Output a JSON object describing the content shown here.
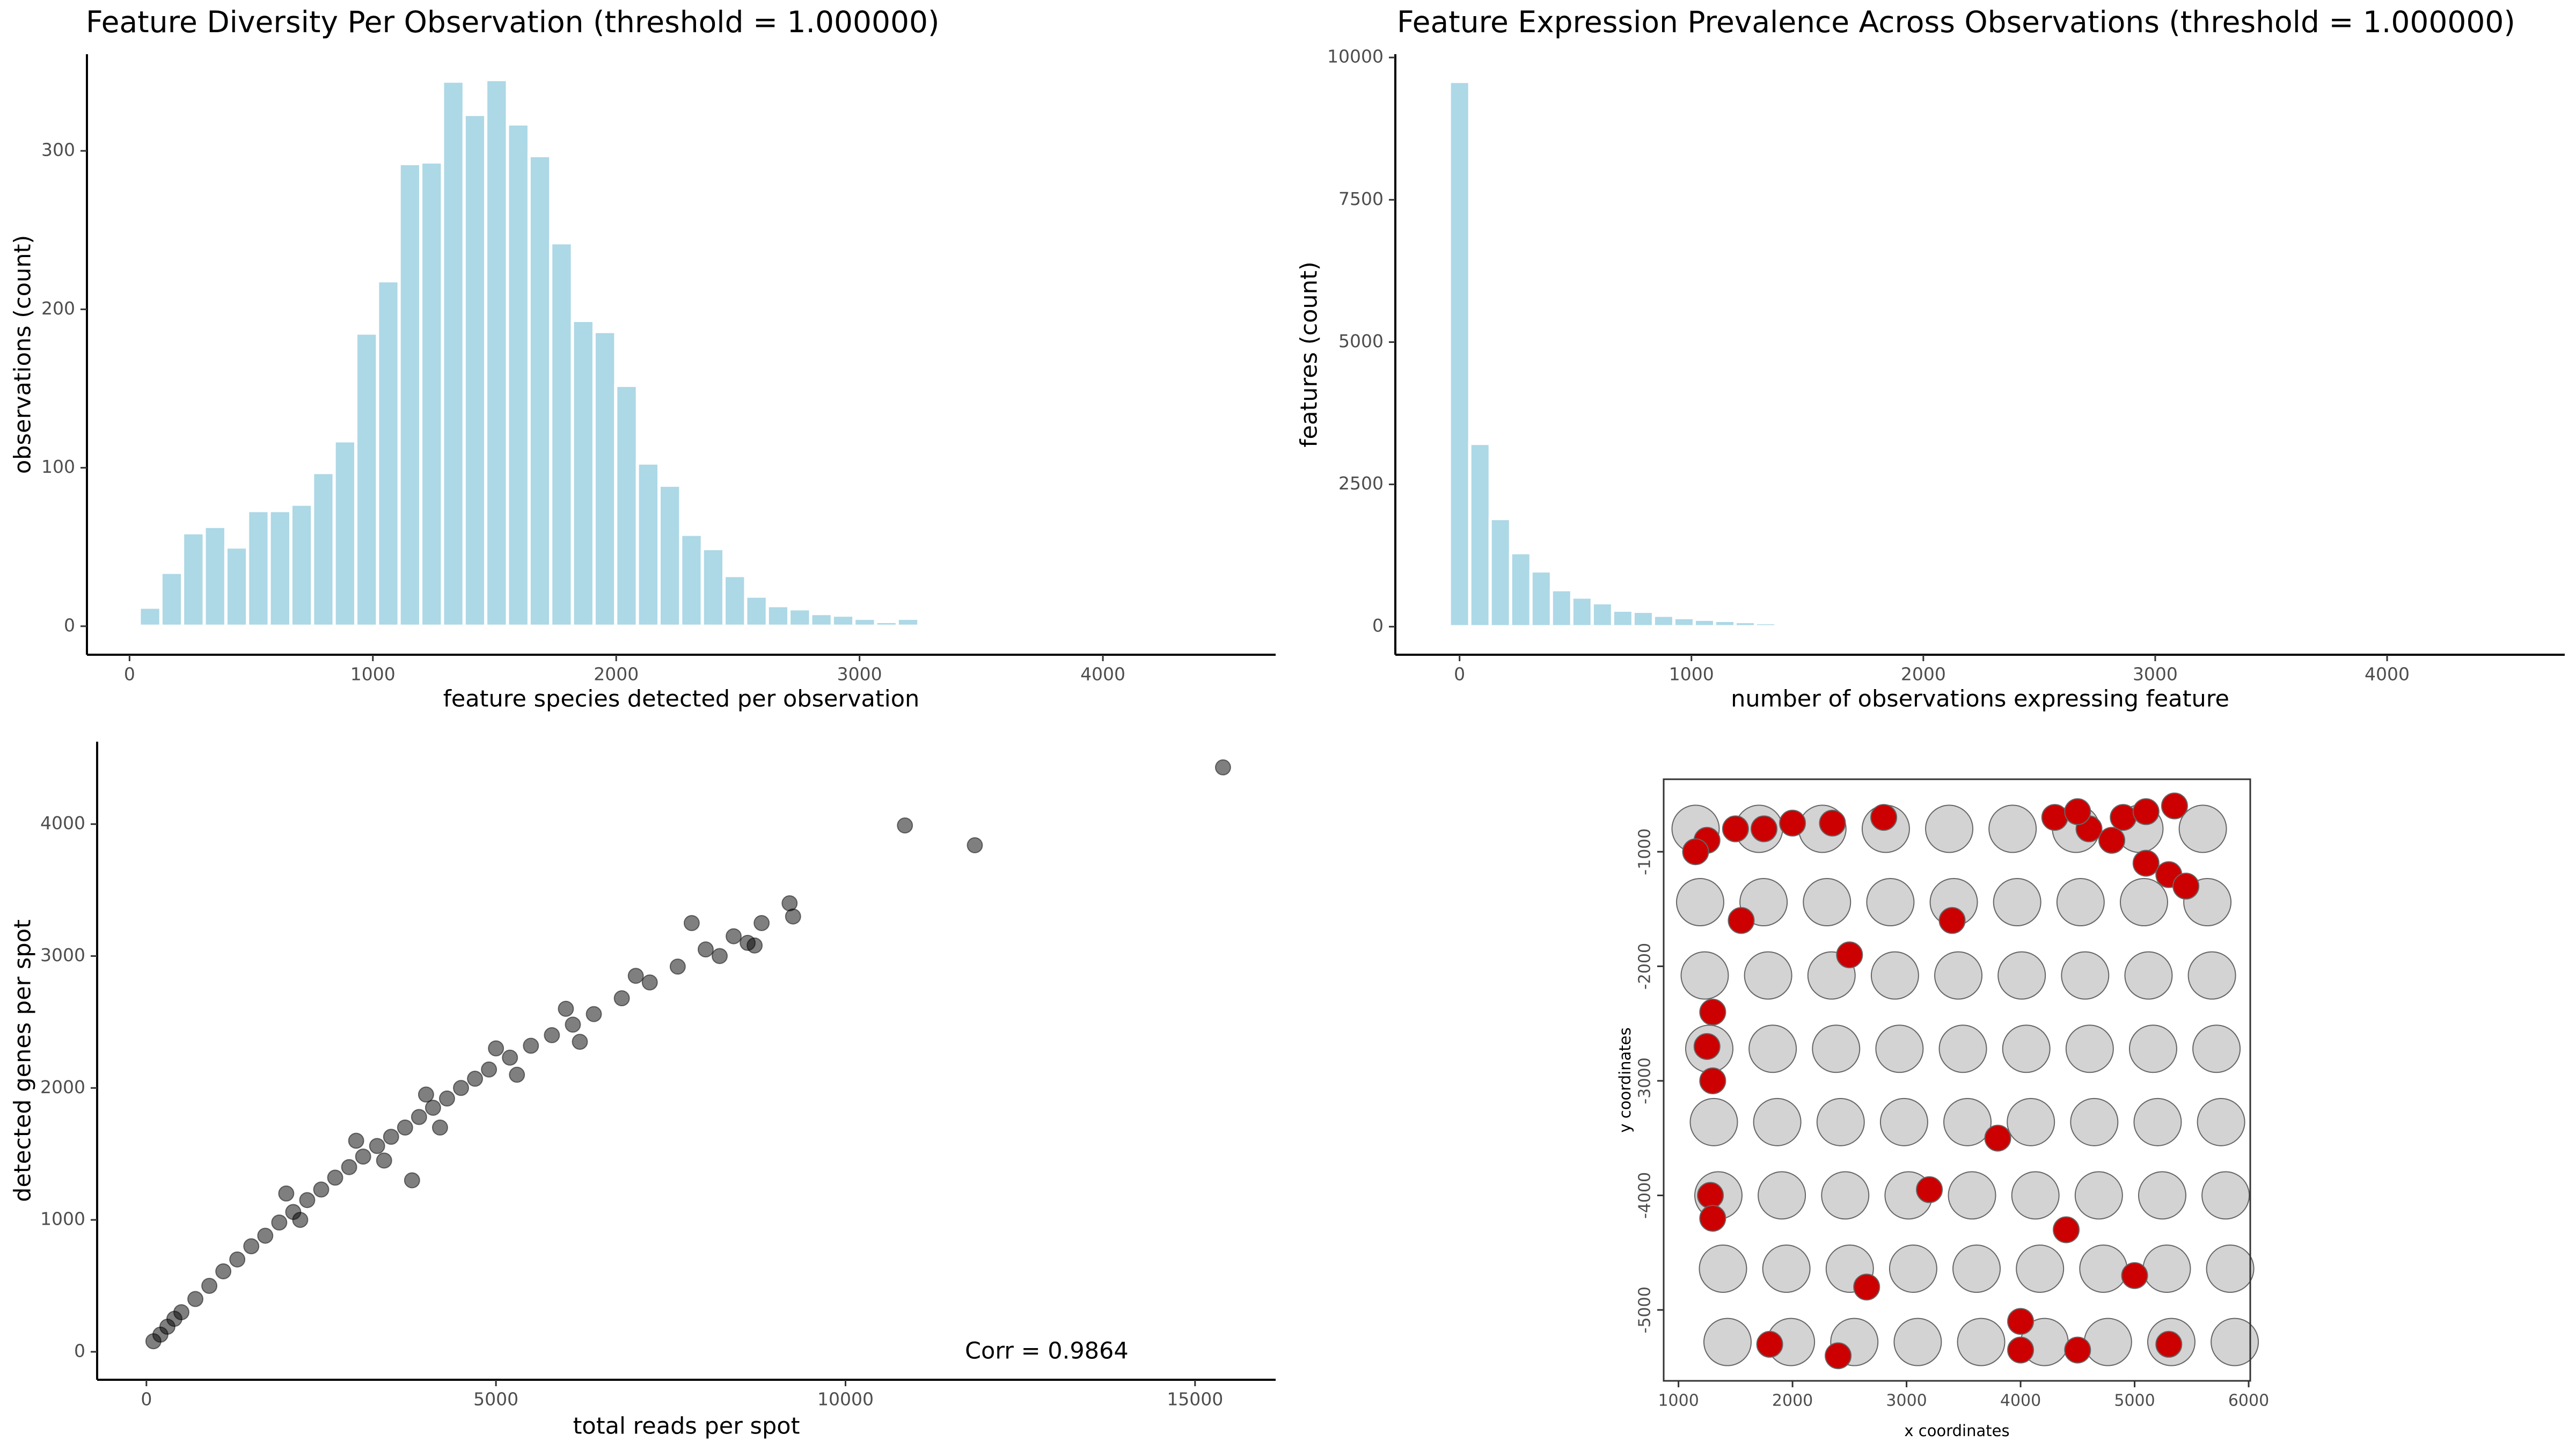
{
  "chart_data": [
    {
      "type": "histogram",
      "title": "Feature Diversity Per Observation (threshold = 1.000000)",
      "xlabel": "feature species detected per observation",
      "ylabel": "observations (count)",
      "color": "#add8e6",
      "bins": [
        40,
        129,
        218,
        307,
        396,
        485,
        574,
        663,
        752,
        841,
        930,
        1019,
        1108,
        1197,
        1286,
        1375,
        1464,
        1553,
        1642,
        1731,
        1820,
        1909,
        1998,
        2087,
        2176,
        2265,
        2354,
        2443,
        2532,
        2621,
        2710,
        2799,
        2888,
        2977,
        3066,
        3155,
        3244,
        3333
      ],
      "values": [
        12,
        34,
        59,
        63,
        50,
        73,
        73,
        77,
        97,
        117,
        185,
        218,
        292,
        293,
        344,
        323,
        345,
        317,
        297,
        242,
        193,
        186,
        152,
        103,
        89,
        58,
        49,
        32,
        19,
        13,
        11,
        8,
        7,
        5,
        3,
        5,
        2
      ],
      "xlim": [
        -175,
        4710
      ],
      "xticks": [
        0,
        1000,
        2000,
        3000,
        4000
      ],
      "ylim": [
        -18,
        361
      ],
      "yticks": [
        0,
        100,
        200,
        300
      ]
    },
    {
      "type": "histogram",
      "title": "Feature Expression Prevalence Across Observations (threshold = 1.000000)",
      "xlabel": "number of observations expressing feature",
      "ylabel": "features (count)",
      "color": "#add8e6",
      "bins": [
        -44,
        44,
        132,
        220,
        308,
        396,
        484,
        572,
        660,
        748,
        836,
        924,
        1012,
        1100,
        1188,
        1276,
        1364,
        1452,
        1540,
        1628,
        1716,
        1804,
        1892,
        1980,
        2068,
        2156
      ],
      "values": [
        9580,
        3220,
        1900,
        1300,
        980,
        650,
        520,
        420,
        290,
        270,
        200,
        160,
        130,
        110,
        90,
        70,
        55,
        40,
        30,
        22,
        16,
        12,
        9,
        6,
        4
      ],
      "xlim": [
        -277,
        4766
      ],
      "xticks": [
        0,
        1000,
        2000,
        3000,
        4000
      ],
      "ylim": [
        -493,
        10058
      ],
      "yticks": [
        0,
        2500,
        5000,
        7500,
        10000
      ]
    },
    {
      "type": "scatter",
      "xlabel": "total reads per spot",
      "ylabel": "detected genes per spot",
      "annotation": "Corr = 0.9864",
      "color": "#000000",
      "alpha": 0.5,
      "x": [
        100,
        200,
        300,
        400,
        500,
        700,
        900,
        1100,
        1300,
        1500,
        1700,
        1900,
        2100,
        2300,
        2500,
        2700,
        2900,
        3100,
        3300,
        3500,
        3700,
        3900,
        4100,
        4300,
        4500,
        4700,
        4900,
        5200,
        5500,
        5800,
        6100,
        6400,
        6800,
        7200,
        7600,
        8000,
        8400,
        8800,
        9200,
        9250,
        8600,
        8200,
        2000,
        2200,
        3000,
        3400,
        4000,
        4200,
        5000,
        5300,
        6000,
        6200,
        7000,
        7800,
        8700,
        3800,
        10850,
        11850,
        15400
      ],
      "values": [
        80,
        130,
        190,
        250,
        300,
        400,
        500,
        610,
        700,
        800,
        880,
        980,
        1060,
        1150,
        1230,
        1320,
        1400,
        1480,
        1560,
        1630,
        1700,
        1780,
        1850,
        1920,
        2000,
        2070,
        2140,
        2230,
        2320,
        2400,
        2480,
        2560,
        2680,
        2800,
        2920,
        3050,
        3150,
        3250,
        3400,
        3300,
        3100,
        3000,
        1200,
        1000,
        1600,
        1450,
        1950,
        1700,
        2300,
        2100,
        2600,
        2350,
        2850,
        3250,
        3080,
        1300,
        3990,
        3840,
        4430
      ],
      "xlim": [
        -705,
        16153
      ],
      "xticks": [
        0,
        5000,
        10000,
        15000
      ],
      "ylim": [
        -212,
        4625
      ],
      "yticks": [
        0,
        1000,
        2000,
        3000,
        4000
      ]
    },
    {
      "type": "spatial",
      "xlabel": "x coordinates",
      "ylabel": "y coordinates",
      "series": [
        {
          "color": "#d3d3d3",
          "x": [
            1150,
            1706,
            2262,
            2818,
            3374,
            3930,
            4486,
            5042,
            5598,
            1190,
            1746,
            2302,
            2858,
            3414,
            3970,
            4526,
            5082,
            5638,
            1230,
            1786,
            2342,
            2898,
            3454,
            4010,
            4566,
            5122,
            5678,
            1270,
            1826,
            2382,
            2938,
            3494,
            4050,
            4606,
            5162,
            5718,
            1310,
            1866,
            2422,
            2978,
            3534,
            4090,
            4646,
            5202,
            5758,
            1350,
            1906,
            2462,
            3018,
            3574,
            4130,
            4686,
            5242,
            5798,
            1390,
            1946,
            2502,
            3058,
            3614,
            4170,
            4726,
            5282,
            5838,
            1430,
            1986,
            2542,
            3098,
            3654,
            4210,
            4766,
            5322,
            5878
          ],
          "values": [
            -800,
            -800,
            -800,
            -800,
            -800,
            -800,
            -800,
            -800,
            -800,
            -1440,
            -1440,
            -1440,
            -1440,
            -1440,
            -1440,
            -1440,
            -1440,
            -1440,
            -2080,
            -2080,
            -2080,
            -2080,
            -2080,
            -2080,
            -2080,
            -2080,
            -2080,
            -2720,
            -2720,
            -2720,
            -2720,
            -2720,
            -2720,
            -2720,
            -2720,
            -2720,
            -3360,
            -3360,
            -3360,
            -3360,
            -3360,
            -3360,
            -3360,
            -3360,
            -3360,
            -4000,
            -4000,
            -4000,
            -4000,
            -4000,
            -4000,
            -4000,
            -4000,
            -4000,
            -4640,
            -4640,
            -4640,
            -4640,
            -4640,
            -4640,
            -4640,
            -4640,
            -4640,
            -5280,
            -5280,
            -5280,
            -5280,
            -5280,
            -5280,
            -5280,
            -5280,
            -5280
          ]
        },
        {
          "color": "#cc0000",
          "x": [
            1250,
            1500,
            1750,
            2000,
            2350,
            2800,
            4300,
            4600,
            4500,
            4900,
            5100,
            5350,
            5100,
            5300,
            5450,
            4800,
            1300,
            1250,
            1300,
            1280,
            1300,
            1800,
            2400,
            4000,
            4500,
            5300,
            1550,
            2500,
            3400,
            3800,
            3200,
            4400,
            5000,
            2650,
            4000,
            1150
          ],
          "values": [
            -900,
            -800,
            -800,
            -750,
            -750,
            -700,
            -700,
            -800,
            -650,
            -700,
            -650,
            -600,
            -1100,
            -1200,
            -1300,
            -900,
            -2400,
            -2700,
            -3000,
            -4000,
            -4200,
            -5300,
            -5400,
            -5350,
            -5350,
            -5300,
            -1600,
            -1900,
            -1600,
            -3500,
            -3950,
            -4300,
            -4700,
            -4800,
            -5100,
            -1000
          ]
        }
      ],
      "xlim": [
        870,
        6014
      ],
      "xticks": [
        1000,
        2000,
        3000,
        4000,
        5000,
        6000
      ],
      "ylim": [
        -5619,
        -367
      ],
      "yticks": [
        -5000,
        -4000,
        -3000,
        -2000,
        -1000
      ]
    }
  ]
}
